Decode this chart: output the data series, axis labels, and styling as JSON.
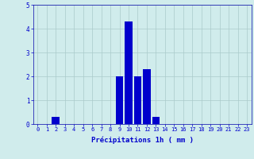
{
  "hours": [
    0,
    1,
    2,
    3,
    4,
    5,
    6,
    7,
    8,
    9,
    10,
    11,
    12,
    13,
    14,
    15,
    16,
    17,
    18,
    19,
    20,
    21,
    22,
    23
  ],
  "values": [
    0,
    0,
    0.3,
    0,
    0,
    0,
    0,
    0,
    0,
    2.0,
    4.3,
    2.0,
    2.3,
    0.3,
    0,
    0,
    0,
    0,
    0,
    0,
    0,
    0,
    0,
    0
  ],
  "bar_color": "#0000cc",
  "bg_color": "#d0ecec",
  "grid_color": "#aacaca",
  "axis_color": "#0000aa",
  "tick_color": "#0000cc",
  "xlabel": "Précipitations 1h ( mm )",
  "xlabel_color": "#0000cc",
  "ylim": [
    0,
    5
  ],
  "yticks": [
    0,
    1,
    2,
    3,
    4,
    5
  ],
  "bar_width": 0.85,
  "tick_fontsize": 5.0,
  "ylabel_fontsize": 5.5,
  "xlabel_fontsize": 6.5
}
